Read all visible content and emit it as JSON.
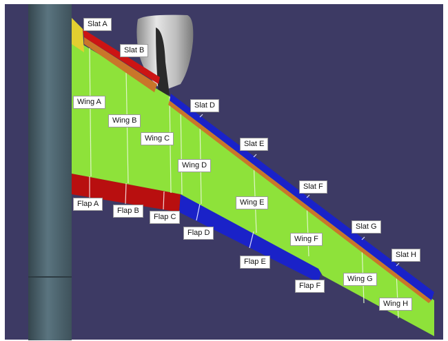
{
  "colors": {
    "background": "#3d3a64",
    "fuselage": "#4f6772",
    "wing": "#8ee23a",
    "slat_inboard": "#cc1414",
    "slat_outboard": "#1a22c8",
    "flap_inboard": "#b80f0f",
    "flap_outboard": "#1a22c8",
    "leading_edge_strip": "#c9762a",
    "root_fairing": "#e3cf30",
    "nacelle": "#c8c8c8"
  },
  "labels": {
    "slat_a": "Slat A",
    "slat_b": "Slat B",
    "slat_d": "Slat D",
    "slat_e": "Slat E",
    "slat_f": "Slat F",
    "slat_g": "Slat G",
    "slat_h": "Slat H",
    "wing_a": "Wing A",
    "wing_b": "Wing B",
    "wing_c": "Wing C",
    "wing_d": "Wing D",
    "wing_e": "Wing E",
    "wing_f": "Wing F",
    "wing_g": "Wing G",
    "wing_h": "Wing H",
    "flap_a": "Flap A",
    "flap_b": "Flap B",
    "flap_c": "Flap C",
    "flap_d": "Flap D",
    "flap_e": "Flap E",
    "flap_f": "Flap F"
  }
}
